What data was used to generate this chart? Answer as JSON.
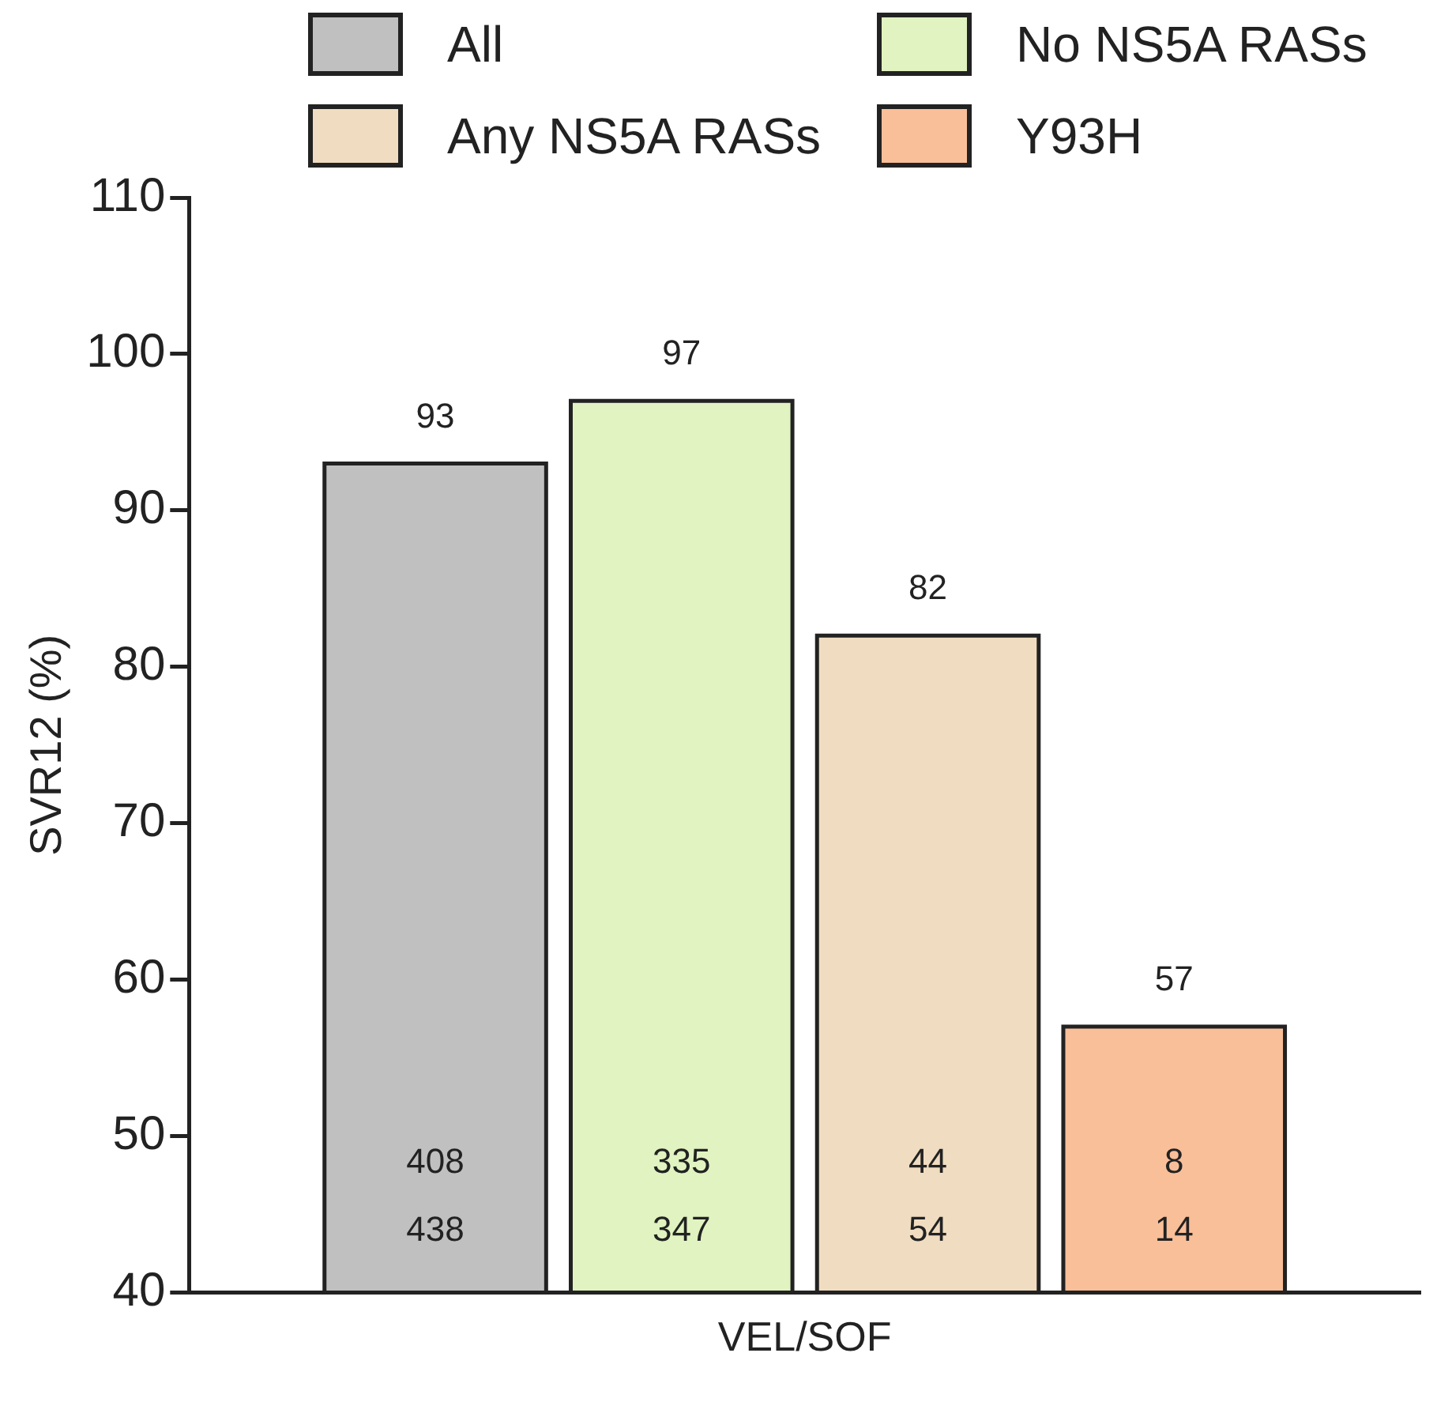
{
  "chart_data": {
    "type": "bar",
    "categories": [
      "VEL/SOF"
    ],
    "ylabel": "SVR12 (%)",
    "series": [
      {
        "name": "All",
        "color": "#c0c0c0",
        "values": [
          93
        ]
      },
      {
        "name": "No NS5A RASs",
        "color": "#e0f3c0",
        "values": [
          97
        ]
      },
      {
        "name": "Any NS5A RASs",
        "color": "#f0dcc0",
        "values": [
          82
        ]
      },
      {
        "name": "Y93H",
        "color": "#f9bf99",
        "values": [
          57
        ]
      }
    ],
    "ylim": [
      40,
      110
    ],
    "yticks": [
      40,
      50,
      60,
      70,
      80,
      90,
      100,
      110
    ],
    "grid": false,
    "legend": "top",
    "data_labels": true,
    "annotations": [
      "408\n438",
      "335\n347",
      "44\n54",
      "8\n14"
    ]
  }
}
